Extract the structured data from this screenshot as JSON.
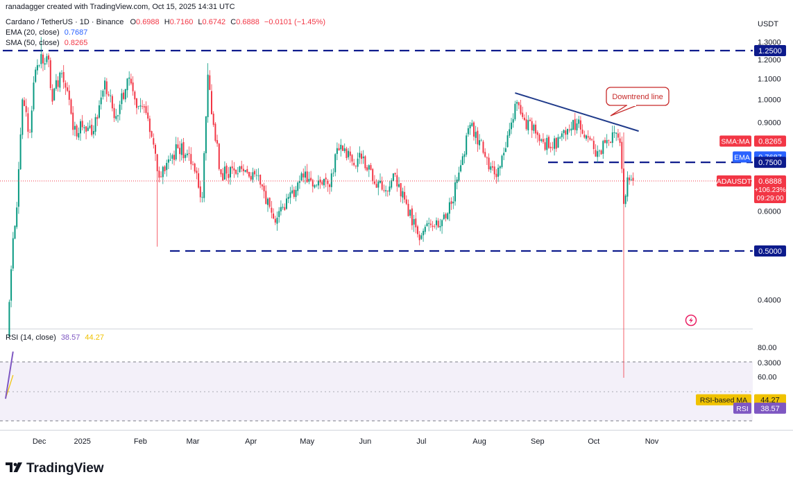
{
  "header": {
    "created_by": "ranadagger created with TradingView.com, Oct 15, 2025 14:31 UTC",
    "symbol": "Cardano / TetherUS · 1D · Binance",
    "ohlc": {
      "o_label": "O",
      "o": "0.6988",
      "h_label": "H",
      "h": "0.7160",
      "l_label": "L",
      "l": "0.6742",
      "c_label": "C",
      "c": "0.6888",
      "change": "−0.0101 (−1.45%)"
    },
    "ema_label": "EMA (20, close)",
    "ema_value": "0.7687",
    "sma_label": "SMA (50, close)",
    "sma_value": "0.8265"
  },
  "currency": "USDT",
  "price_axis": {
    "ticks": [
      {
        "v": 1.3,
        "label": "1.3000"
      },
      {
        "v": 1.2,
        "label": "1.2000"
      },
      {
        "v": 1.1,
        "label": "1.1000"
      },
      {
        "v": 1.0,
        "label": "1.0000"
      },
      {
        "v": 0.9,
        "label": "0.9000"
      },
      {
        "v": 0.6,
        "label": "0.6000"
      },
      {
        "v": 0.4,
        "label": "0.4000"
      },
      {
        "v": 0.3,
        "label": "0.3000"
      }
    ]
  },
  "price_badges": [
    {
      "v": 1.25,
      "label": "1.2500",
      "color": "#ffffff",
      "bg": "#0d1b8c",
      "tag": ""
    },
    {
      "v": 0.8265,
      "label": "0.8265",
      "color": "#ffffff",
      "bg": "#f23645",
      "tag": "SMA:MA",
      "tag_bg": "#f23645"
    },
    {
      "v": 0.7687,
      "label": "0.7687",
      "color": "#ffffff",
      "bg": "#2962ff",
      "tag": "EMA",
      "tag_bg": "#2962ff"
    },
    {
      "v": 0.75,
      "label": "0.7500",
      "color": "#ffffff",
      "bg": "#0d1b8c",
      "tag": ""
    },
    {
      "v": 0.5,
      "label": "0.5000",
      "color": "#ffffff",
      "bg": "#0d1b8c",
      "tag": ""
    }
  ],
  "last_price": {
    "tag": "ADAUSDT",
    "price": "0.6888",
    "pct": "+106.23%",
    "countdown": "09:29:00",
    "color": "#f23645"
  },
  "annotation": {
    "label": "Downtrend line",
    "color": "#c62828"
  },
  "time_axis": {
    "labels": [
      {
        "i": 18,
        "label": "Dec"
      },
      {
        "i": 41,
        "label": "2025"
      },
      {
        "i": 72,
        "label": "Feb"
      },
      {
        "i": 100,
        "label": "Mar"
      },
      {
        "i": 131,
        "label": "Apr"
      },
      {
        "i": 161,
        "label": "May"
      },
      {
        "i": 192,
        "label": "Jun"
      },
      {
        "i": 222,
        "label": "Jul"
      },
      {
        "i": 253,
        "label": "Aug"
      },
      {
        "i": 284,
        "label": "Sep"
      },
      {
        "i": 314,
        "label": "Oct"
      },
      {
        "i": 345,
        "label": "Nov"
      }
    ]
  },
  "rsi": {
    "label": "RSI (14, close)",
    "value": "38.57",
    "ma_value": "44.27",
    "ticks": [
      {
        "v": 80,
        "label": "80.00"
      },
      {
        "v": 60,
        "label": "60.00"
      }
    ],
    "badges": [
      {
        "tag": "RSI-based MA",
        "value": "44.27",
        "v": 44.27,
        "color": "#f0c200"
      },
      {
        "tag": "RSI",
        "value": "38.57",
        "v": 38.57,
        "color": "#7e57c2"
      }
    ]
  },
  "footer": {
    "brand": "TradingView"
  },
  "colors": {
    "up": "#089981",
    "down": "#f23645",
    "ema": "#2962ff",
    "sma": "#f23645",
    "level": "#0d1b8c",
    "trend": "#1f3a8a",
    "rsi": "#7e57c2",
    "rsi_ma": "#f0c200"
  },
  "chart_data": {
    "type": "candlestick",
    "title": "Cardano / TetherUS · 1D · Binance",
    "y_scale": "log",
    "ylim": [
      0.27,
      1.33
    ],
    "x_range": [
      "2024-11-14",
      "2025-11-20"
    ],
    "horizontal_levels": [
      1.25,
      0.75,
      0.5
    ],
    "trend_line": {
      "from": {
        "date": "2025-08-13",
        "price": 1.03
      },
      "to": {
        "date": "2025-10-18",
        "price": 0.865
      },
      "label": "Downtrend line"
    },
    "anchors": [
      {
        "date": "2024-11-15",
        "close": 0.34
      },
      {
        "date": "2024-11-18",
        "close": 0.53
      },
      {
        "date": "2024-11-20",
        "close": 0.61
      },
      {
        "date": "2024-11-23",
        "close": 1.0
      },
      {
        "date": "2024-11-27",
        "close": 0.86
      },
      {
        "date": "2024-11-29",
        "close": 1.08
      },
      {
        "date": "2024-12-03",
        "close": 1.23
      },
      {
        "date": "2024-12-05",
        "close": 1.18
      },
      {
        "date": "2024-12-07",
        "close": 1.2
      },
      {
        "date": "2024-12-09",
        "close": 0.99
      },
      {
        "date": "2024-12-13",
        "close": 1.13
      },
      {
        "date": "2024-12-17",
        "close": 1.04
      },
      {
        "date": "2024-12-20",
        "close": 0.87
      },
      {
        "date": "2024-12-26",
        "close": 0.88
      },
      {
        "date": "2024-12-30",
        "close": 0.85
      },
      {
        "date": "2025-01-06",
        "close": 1.09
      },
      {
        "date": "2025-01-10",
        "close": 0.96
      },
      {
        "date": "2025-01-13",
        "close": 0.93
      },
      {
        "date": "2025-01-18",
        "close": 1.1
      },
      {
        "date": "2025-01-22",
        "close": 1.0
      },
      {
        "date": "2025-01-28",
        "close": 0.94
      },
      {
        "date": "2025-02-02",
        "close": 0.78
      },
      {
        "date": "2025-02-03",
        "close": 0.72
      },
      {
        "date": "2025-02-07",
        "close": 0.72
      },
      {
        "date": "2025-02-14",
        "close": 0.8
      },
      {
        "date": "2025-02-20",
        "close": 0.78
      },
      {
        "date": "2025-02-27",
        "close": 0.64
      },
      {
        "date": "2025-03-02",
        "close": 1.12
      },
      {
        "date": "2025-03-05",
        "close": 0.89
      },
      {
        "date": "2025-03-09",
        "close": 0.71
      },
      {
        "date": "2025-03-15",
        "close": 0.73
      },
      {
        "date": "2025-03-21",
        "close": 0.72
      },
      {
        "date": "2025-03-27",
        "close": 0.71
      },
      {
        "date": "2025-04-06",
        "close": 0.58
      },
      {
        "date": "2025-04-09",
        "close": 0.6
      },
      {
        "date": "2025-04-14",
        "close": 0.64
      },
      {
        "date": "2025-04-22",
        "close": 0.7
      },
      {
        "date": "2025-04-30",
        "close": 0.69
      },
      {
        "date": "2025-05-06",
        "close": 0.67
      },
      {
        "date": "2025-05-10",
        "close": 0.8
      },
      {
        "date": "2025-05-14",
        "close": 0.8
      },
      {
        "date": "2025-05-19",
        "close": 0.74
      },
      {
        "date": "2025-05-24",
        "close": 0.77
      },
      {
        "date": "2025-05-30",
        "close": 0.68
      },
      {
        "date": "2025-06-05",
        "close": 0.66
      },
      {
        "date": "2025-06-10",
        "close": 0.71
      },
      {
        "date": "2025-06-16",
        "close": 0.62
      },
      {
        "date": "2025-06-22",
        "close": 0.54
      },
      {
        "date": "2025-07-01",
        "close": 0.56
      },
      {
        "date": "2025-07-10",
        "close": 0.62
      },
      {
        "date": "2025-07-15",
        "close": 0.74
      },
      {
        "date": "2025-07-20",
        "close": 0.89
      },
      {
        "date": "2025-07-25",
        "close": 0.83
      },
      {
        "date": "2025-08-02",
        "close": 0.71
      },
      {
        "date": "2025-08-08",
        "close": 0.8
      },
      {
        "date": "2025-08-13",
        "close": 0.98
      },
      {
        "date": "2025-08-18",
        "close": 0.91
      },
      {
        "date": "2025-08-25",
        "close": 0.85
      },
      {
        "date": "2025-09-01",
        "close": 0.8
      },
      {
        "date": "2025-09-06",
        "close": 0.84
      },
      {
        "date": "2025-09-13",
        "close": 0.91
      },
      {
        "date": "2025-09-21",
        "close": 0.84
      },
      {
        "date": "2025-09-25",
        "close": 0.77
      },
      {
        "date": "2025-10-01",
        "close": 0.83
      },
      {
        "date": "2025-10-05",
        "close": 0.86
      },
      {
        "date": "2025-10-08",
        "close": 0.82
      },
      {
        "date": "2025-10-10",
        "close": 0.62
      },
      {
        "date": "2025-10-12",
        "close": 0.7
      },
      {
        "date": "2025-10-15",
        "close": 0.6888
      }
    ],
    "crash_wick": {
      "date": "2025-10-10",
      "low": 0.28
    },
    "ema20_last": 0.7687,
    "sma50_last": 0.8265,
    "rsi14_last": 38.57,
    "rsi_ma_last": 44.27
  }
}
